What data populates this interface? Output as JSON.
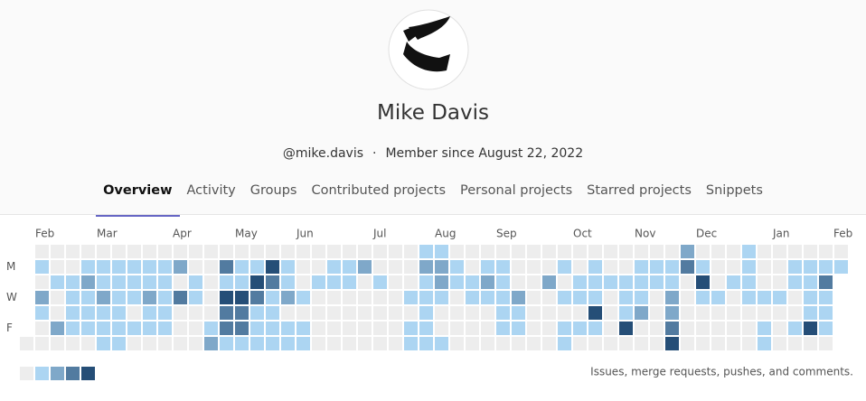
{
  "profile": {
    "name": "Mike Davis",
    "username": "@mike.davis",
    "separator": "·",
    "member_since": "Member since August 22, 2022"
  },
  "tabs": [
    "Overview",
    "Activity",
    "Groups",
    "Contributed projects",
    "Personal projects",
    "Starred projects",
    "Snippets"
  ],
  "active_tab": 0,
  "calendar": {
    "months": [
      "Feb",
      "Mar",
      "Apr",
      "May",
      "Jun",
      "Jul",
      "Aug",
      "Sep",
      "Oct",
      "Nov",
      "Dec",
      "Jan",
      "Feb"
    ],
    "days": [
      "M",
      "W",
      "F"
    ],
    "colors": [
      "#ededed",
      "#acd5f2",
      "#7fa8c9",
      "#527ba0",
      "#254e77"
    ],
    "rows": [
      [
        null,
        0,
        0,
        0,
        0,
        0,
        0,
        0,
        0,
        0,
        0,
        0,
        0,
        0,
        0,
        0,
        0,
        0,
        0,
        0,
        0,
        0,
        0,
        0,
        0,
        0,
        1,
        1,
        0,
        0,
        0,
        0,
        0,
        0,
        0,
        0,
        0,
        0,
        0,
        0,
        0,
        0,
        0,
        2,
        0,
        0,
        0,
        1,
        0,
        0,
        0,
        0,
        0,
        0
      ],
      [
        null,
        1,
        0,
        0,
        1,
        1,
        1,
        1,
        1,
        1,
        2,
        0,
        0,
        3,
        1,
        1,
        4,
        1,
        0,
        0,
        1,
        1,
        2,
        0,
        0,
        0,
        2,
        2,
        1,
        0,
        1,
        1,
        0,
        0,
        0,
        1,
        0,
        1,
        0,
        0,
        1,
        1,
        1,
        3,
        1,
        0,
        0,
        1,
        0,
        0,
        1,
        1,
        1,
        1
      ],
      [
        null,
        0,
        1,
        1,
        2,
        1,
        1,
        1,
        1,
        1,
        0,
        1,
        0,
        1,
        1,
        4,
        3,
        1,
        0,
        1,
        1,
        1,
        0,
        1,
        0,
        0,
        1,
        2,
        1,
        1,
        2,
        1,
        0,
        0,
        2,
        0,
        1,
        1,
        1,
        1,
        1,
        1,
        1,
        0,
        4,
        0,
        1,
        1,
        0,
        0,
        1,
        1,
        3,
        null
      ],
      [
        null,
        2,
        0,
        1,
        1,
        2,
        1,
        1,
        2,
        1,
        3,
        1,
        0,
        4,
        4,
        3,
        1,
        2,
        1,
        0,
        0,
        0,
        0,
        0,
        0,
        1,
        1,
        1,
        0,
        1,
        1,
        1,
        2,
        0,
        0,
        1,
        1,
        1,
        0,
        1,
        1,
        0,
        2,
        0,
        1,
        1,
        0,
        1,
        1,
        1,
        0,
        1,
        1,
        null
      ],
      [
        null,
        1,
        0,
        1,
        1,
        1,
        1,
        0,
        1,
        1,
        0,
        0,
        0,
        3,
        3,
        1,
        1,
        0,
        0,
        0,
        0,
        0,
        0,
        0,
        0,
        0,
        1,
        0,
        0,
        0,
        0,
        1,
        1,
        0,
        0,
        0,
        0,
        4,
        0,
        1,
        2,
        0,
        2,
        0,
        0,
        0,
        0,
        0,
        0,
        0,
        0,
        1,
        1,
        null
      ],
      [
        null,
        0,
        2,
        1,
        1,
        1,
        1,
        1,
        1,
        1,
        0,
        0,
        1,
        3,
        3,
        1,
        1,
        1,
        1,
        0,
        0,
        0,
        0,
        0,
        0,
        1,
        1,
        0,
        0,
        0,
        0,
        1,
        1,
        0,
        0,
        1,
        1,
        1,
        0,
        4,
        0,
        0,
        3,
        0,
        0,
        0,
        0,
        0,
        1,
        0,
        1,
        4,
        1,
        null
      ],
      [
        0,
        0,
        0,
        0,
        0,
        1,
        1,
        0,
        0,
        0,
        0,
        0,
        2,
        1,
        1,
        1,
        1,
        1,
        1,
        0,
        0,
        0,
        0,
        0,
        0,
        1,
        1,
        1,
        0,
        0,
        0,
        0,
        0,
        0,
        0,
        1,
        0,
        0,
        0,
        0,
        0,
        0,
        4,
        0,
        0,
        0,
        0,
        0,
        1,
        0,
        0,
        0,
        0,
        null
      ]
    ],
    "legend_levels": [
      0,
      1,
      2,
      3,
      4
    ],
    "legend_text": "Issues, merge requests, pushes, and comments."
  }
}
